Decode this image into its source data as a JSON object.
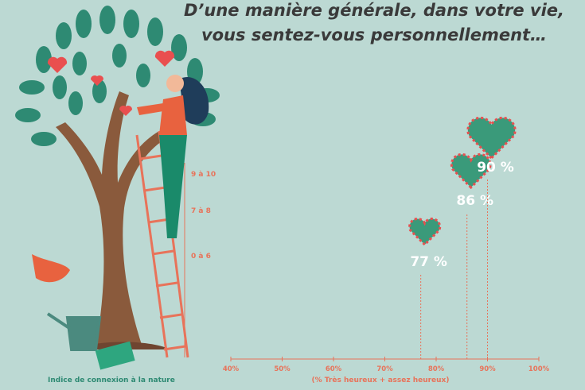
{
  "chart_data": {
    "type": "lollipop",
    "title": [
      "D’une manière générale, dans votre vie,",
      "vous sentez-vous personnellement…"
    ],
    "x_label": "(% Très heureux + assez heureux)",
    "category_label": "Indice de connexion à la nature",
    "categories": [
      "0 à 6",
      "7 à 8",
      "9 à 10"
    ],
    "values": [
      77,
      86,
      90
    ],
    "value_labels": [
      "77 %",
      "86 %",
      "90 %"
    ],
    "color": "#e8735a",
    "xlim": [
      40,
      100
    ],
    "xticks": [
      {
        "value": 40,
        "label": "40%"
      },
      {
        "value": 50,
        "label": "50%"
      },
      {
        "value": 60,
        "label": "60%"
      },
      {
        "value": 70,
        "label": "70%"
      },
      {
        "value": 80,
        "label": "80%"
      },
      {
        "value": 90,
        "label": "90%"
      },
      {
        "value": 100,
        "label": "100%"
      }
    ]
  }
}
